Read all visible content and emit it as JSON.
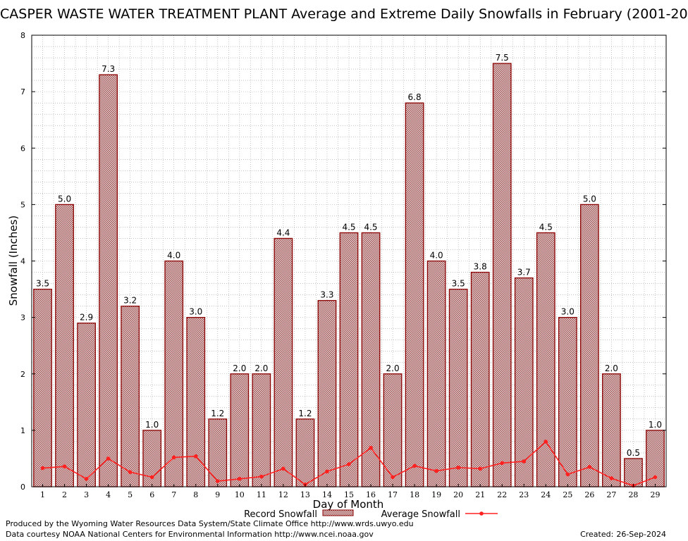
{
  "title": "CASPER WASTE WATER TREATMENT PLANT Average and Extreme Daily Snowfalls in February (2001-20",
  "credits": {
    "line1": "Produced by the Wyoming Water Resources Data System/State Climate Office http://www.wrds.uwyo.edu",
    "line2": "Data courtesy NOAA National Centers for Environmental Information http://www.ncei.noaa.gov",
    "created_label": "Created:",
    "created_value": "26-Sep-2024"
  },
  "colors": {
    "bar_fill": "#c8a8a8",
    "bar_edge": "#8b0000",
    "line": "#ff2020",
    "grid": "#a0a0a0"
  },
  "chart_data": {
    "type": "bar",
    "xlabel": "Day of Month",
    "ylabel": "Snowfall (Inches)",
    "ylim": [
      0,
      8
    ],
    "yticks": [
      0,
      1,
      2,
      3,
      4,
      5,
      6,
      7,
      8
    ],
    "grid": true,
    "legend_position": "bottom",
    "categories": [
      "1",
      "2",
      "3",
      "4",
      "5",
      "6",
      "7",
      "8",
      "9",
      "10",
      "11",
      "12",
      "13",
      "14",
      "15",
      "16",
      "17",
      "18",
      "19",
      "20",
      "21",
      "22",
      "23",
      "24",
      "25",
      "26",
      "27",
      "28",
      "29"
    ],
    "series": [
      {
        "name": "Record Snowfall",
        "type": "bar",
        "values": [
          3.5,
          5.0,
          2.9,
          7.3,
          3.2,
          1.0,
          4.0,
          3.0,
          1.2,
          2.0,
          2.0,
          4.4,
          1.2,
          3.3,
          4.5,
          4.5,
          2.0,
          6.8,
          4.0,
          3.5,
          3.8,
          7.5,
          3.7,
          4.5,
          3.0,
          5.0,
          2.0,
          0.5,
          1.0
        ],
        "labels": [
          "3.5",
          "5.0",
          "2.9",
          "7.3",
          "3.2",
          "1.0",
          "4.0",
          "3.0",
          "1.2",
          "2.0",
          "2.0",
          "4.4",
          "1.2",
          "3.3",
          "4.5",
          "4.5",
          "2.0",
          "6.8",
          "4.0",
          "3.5",
          "3.8",
          "7.5",
          "3.7",
          "4.5",
          "3.0",
          "5.0",
          "2.0",
          "0.5",
          "1.0"
        ]
      },
      {
        "name": "Average Snowfall",
        "type": "line",
        "values": [
          0.33,
          0.36,
          0.14,
          0.5,
          0.26,
          0.17,
          0.52,
          0.54,
          0.1,
          0.14,
          0.18,
          0.32,
          0.04,
          0.27,
          0.4,
          0.69,
          0.17,
          0.37,
          0.28,
          0.34,
          0.32,
          0.42,
          0.45,
          0.8,
          0.22,
          0.35,
          0.15,
          0.02,
          0.17
        ]
      }
    ]
  }
}
